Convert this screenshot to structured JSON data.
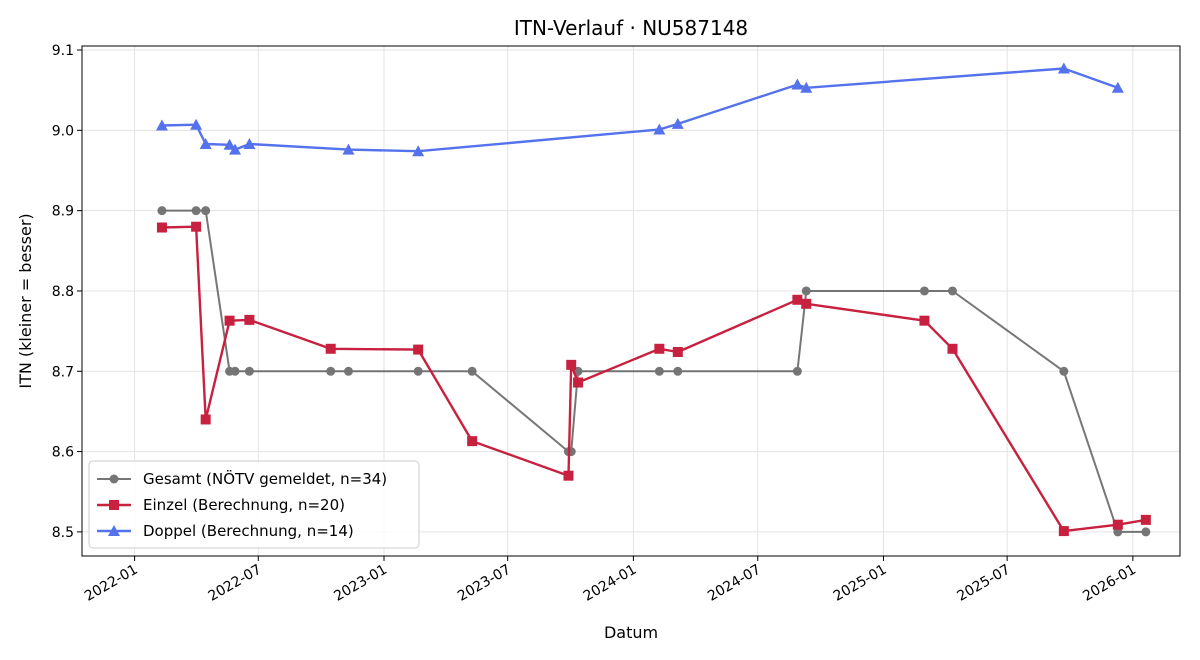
{
  "chart_data": {
    "type": "line",
    "title": "ITN-Verlauf · NU587148",
    "xlabel": "Datum",
    "ylabel": "ITN  (kleiner = besser)",
    "x_axis_type": "date",
    "xlim": [
      "2021-10-16",
      "2026-03-11"
    ],
    "ylim": [
      8.47,
      9.105
    ],
    "x_ticks": [
      "2022-01",
      "2022-07",
      "2023-01",
      "2023-07",
      "2024-01",
      "2024-07",
      "2025-01",
      "2025-07",
      "2026-01"
    ],
    "y_ticks": [
      "8.5",
      "8.6",
      "8.7",
      "8.8",
      "8.9",
      "9.0",
      "9.1"
    ],
    "grid": true,
    "legend_position": "lower-left",
    "series": [
      {
        "name": "Gesamt (NÖTV gemeldet, n=34)",
        "color": "#555555",
        "marker": "circle",
        "points": [
          [
            "2022-02-10",
            8.9
          ],
          [
            "2022-04-01",
            8.9
          ],
          [
            "2022-04-15",
            8.9
          ],
          [
            "2022-05-20",
            8.7
          ],
          [
            "2022-05-28",
            8.7
          ],
          [
            "2022-06-18",
            8.7
          ],
          [
            "2022-10-15",
            8.7
          ],
          [
            "2022-11-10",
            8.7
          ],
          [
            "2023-02-20",
            8.7
          ],
          [
            "2023-05-10",
            8.7
          ],
          [
            "2023-09-28",
            8.6
          ],
          [
            "2023-10-02",
            8.6
          ],
          [
            "2023-10-12",
            8.7
          ],
          [
            "2024-02-08",
            8.7
          ],
          [
            "2024-03-06",
            8.7
          ],
          [
            "2024-08-28",
            8.7
          ],
          [
            "2024-09-10",
            8.8
          ],
          [
            "2025-03-02",
            8.8
          ],
          [
            "2025-04-12",
            8.8
          ],
          [
            "2025-09-22",
            8.7
          ],
          [
            "2025-12-10",
            8.5
          ],
          [
            "2026-01-20",
            8.5
          ]
        ]
      },
      {
        "name": "Einzel (Berechnung, n=20)",
        "color": "#c8203f",
        "marker": "square",
        "points": [
          [
            "2022-02-10",
            8.879
          ],
          [
            "2022-04-01",
            8.88
          ],
          [
            "2022-04-15",
            8.64
          ],
          [
            "2022-05-20",
            8.763
          ],
          [
            "2022-06-18",
            8.764
          ],
          [
            "2022-10-15",
            8.728
          ],
          [
            "2023-02-20",
            8.727
          ],
          [
            "2023-05-10",
            8.613
          ],
          [
            "2023-09-28",
            8.57
          ],
          [
            "2023-10-02",
            8.708
          ],
          [
            "2023-10-12",
            8.686
          ],
          [
            "2024-02-08",
            8.728
          ],
          [
            "2024-03-06",
            8.724
          ],
          [
            "2024-08-28",
            8.789
          ],
          [
            "2024-09-10",
            8.784
          ],
          [
            "2025-03-02",
            8.763
          ],
          [
            "2025-04-12",
            8.728
          ],
          [
            "2025-09-22",
            8.501
          ],
          [
            "2025-12-10",
            8.509
          ],
          [
            "2026-01-20",
            8.515
          ]
        ]
      },
      {
        "name": "Doppel (Berechnung, n=14)",
        "color": "#5572ed",
        "marker": "triangle",
        "points": [
          [
            "2022-02-10",
            9.006
          ],
          [
            "2022-04-01",
            9.007
          ],
          [
            "2022-04-15",
            8.983
          ],
          [
            "2022-05-20",
            8.982
          ],
          [
            "2022-05-28",
            8.976
          ],
          [
            "2022-06-18",
            8.983
          ],
          [
            "2022-11-10",
            8.976
          ],
          [
            "2023-02-20",
            8.974
          ],
          [
            "2024-02-08",
            9.001
          ],
          [
            "2024-03-06",
            9.008
          ],
          [
            "2024-08-28",
            9.057
          ],
          [
            "2024-09-10",
            9.053
          ],
          [
            "2025-09-22",
            9.077
          ],
          [
            "2025-12-10",
            9.053
          ]
        ]
      }
    ]
  }
}
